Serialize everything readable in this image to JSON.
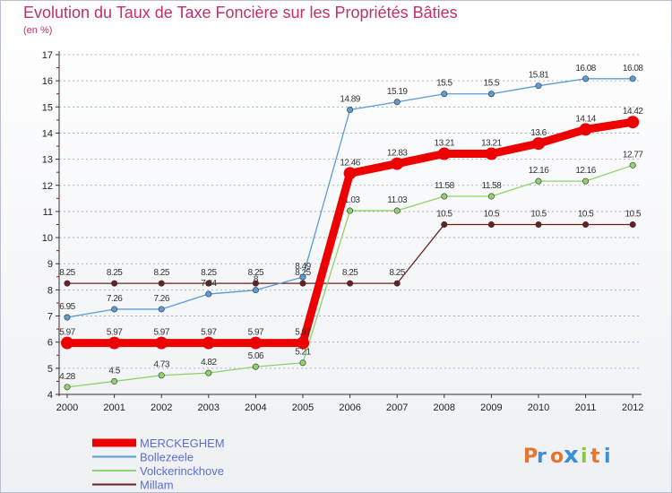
{
  "header": {
    "title": "Evolution du Taux de Taxe Foncière sur les Propriétés Bâties",
    "subtitle": "(en %)"
  },
  "chart_data": {
    "type": "line",
    "title": "Evolution du Taux de Taxe Foncière sur les Propriétés Bâties",
    "ylabel": "(en %)",
    "xlabel": "",
    "x": [
      "2000",
      "2001",
      "2002",
      "2003",
      "2004",
      "2005",
      "2006",
      "2007",
      "2008",
      "2009",
      "2010",
      "2011",
      "2012"
    ],
    "ylim": [
      4,
      17
    ],
    "yticks": [
      4,
      5,
      6,
      7,
      8,
      9,
      10,
      11,
      12,
      13,
      14,
      15,
      16,
      17
    ],
    "grid": "horizontal dashed",
    "series": [
      {
        "name": "Millam",
        "color": "#6b1f1f",
        "values": [
          8.25,
          8.25,
          8.25,
          8.25,
          8.25,
          8.25,
          8.25,
          8.25,
          10.5,
          10.5,
          10.5,
          10.5,
          10.5
        ],
        "labels": [
          "8.25",
          "8.25",
          "8.25",
          "8.25",
          "8.25",
          "8.25",
          "8.25",
          "8.25",
          "10.5",
          "10.5",
          "10.5",
          "10.5",
          "10.5"
        ]
      },
      {
        "name": "Volckerinckhove",
        "color": "#8fd16a",
        "values": [
          4.28,
          4.5,
          4.73,
          4.82,
          5.06,
          5.21,
          11.03,
          11.03,
          11.58,
          11.58,
          12.16,
          12.16,
          12.77
        ],
        "labels": [
          "4.28",
          "4.5",
          "4.73",
          "4.82",
          "5.06",
          "5.21",
          "11.03",
          "11.03",
          "11.58",
          "11.58",
          "12.16",
          "12.16",
          "12.77"
        ]
      },
      {
        "name": "Bollezeele",
        "color": "#5b9bd5",
        "values": [
          6.95,
          7.26,
          7.26,
          7.84,
          7.99,
          8.49,
          14.89,
          15.19,
          15.5,
          15.5,
          15.81,
          16.08,
          16.08
        ],
        "labels": [
          "6.95",
          "7.26",
          "7.26",
          "7.84",
          "8",
          "8.49",
          "14.89",
          "15.19",
          "15.5",
          "15.5",
          "15.81",
          "16.08",
          "16.08"
        ]
      },
      {
        "name": "MERCKEGHEM",
        "color": "#ee0000",
        "values": [
          5.97,
          5.97,
          5.97,
          5.97,
          5.97,
          5.97,
          12.46,
          12.83,
          13.21,
          13.21,
          13.6,
          14.14,
          14.42
        ],
        "labels": [
          "5.97",
          "5.97",
          "5.97",
          "5.97",
          "5.97",
          "5.97",
          "12.46",
          "12.83",
          "13.21",
          "13.21",
          "13.6",
          "14.14",
          "14.42"
        ]
      }
    ],
    "legend_order": [
      "MERCKEGHEM",
      "Bollezeele",
      "Volckerinckhove",
      "Millam"
    ],
    "legend": "bottom-left"
  },
  "brand": {
    "letters": [
      "P",
      "r",
      "o",
      "x",
      "i",
      "t",
      "i"
    ],
    "colors": [
      "#e8732a",
      "#3a8fd6",
      "#e8732a",
      "#3a8fd6",
      "#8cc63f",
      "#e8732a",
      "#3a8fd6"
    ]
  }
}
